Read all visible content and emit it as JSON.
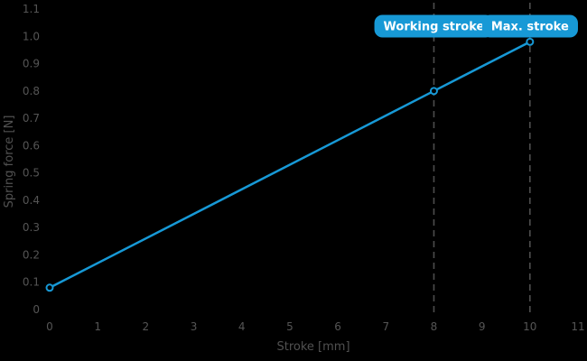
{
  "chart_data": {
    "type": "line",
    "title": "",
    "xlabel": "Stroke [mm]",
    "ylabel": "Spring force [N]",
    "series": [
      {
        "name": "spring-force-line",
        "x": [
          0,
          8,
          10
        ],
        "y": [
          0.08,
          0.8,
          0.98
        ]
      }
    ],
    "xlim": [
      0,
      11
    ],
    "ylim": [
      0,
      1.1
    ],
    "x_tick_values": [
      0,
      1,
      2,
      3,
      4,
      5,
      6,
      7,
      8,
      9,
      10,
      11
    ],
    "x_tick_labels": [
      "0",
      "1",
      "2",
      "3",
      "4",
      "5",
      "6",
      "7",
      "8",
      "9",
      "10",
      "11"
    ],
    "y_tick_values": [
      0,
      0.1,
      0.2,
      0.3,
      0.4,
      0.5,
      0.6,
      0.7,
      0.8,
      0.9,
      1.0,
      1.1
    ],
    "y_tick_labels": [
      "0",
      "0.1",
      "0.2",
      "0.3",
      "0.4",
      "0.5",
      "0.6",
      "0.7",
      "0.8",
      "0.9",
      "1.0",
      "1.1"
    ],
    "grid": false,
    "legend": null,
    "annotations": [
      {
        "label": "Working stroke",
        "x": 8
      },
      {
        "label": "Max. stroke",
        "x": 10
      }
    ],
    "colors": {
      "background": "#000000",
      "line": "#1799d6",
      "marker_fill": "#000000",
      "tick_text": "#555555",
      "axis_title_text": "#515151",
      "guide_line": "#4d4d4d",
      "annotation_bg": "#1799d6",
      "annotation_text": "#ffffff"
    }
  }
}
